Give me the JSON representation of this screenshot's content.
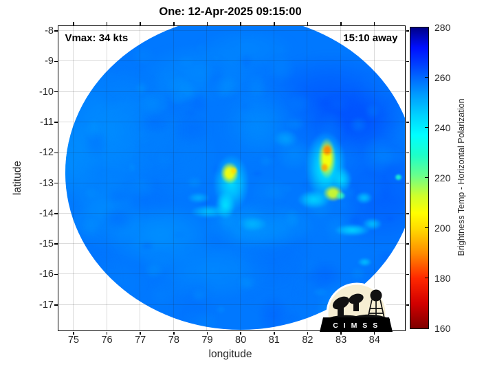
{
  "title": "One: 12-Apr-2025 09:15:00",
  "annotations": {
    "vmax": "Vmax: 34 kts",
    "eta": "15:10 away"
  },
  "logo": {
    "text": "C I M S S"
  },
  "chart_data": {
    "type": "heatmap",
    "title": "One: 12-Apr-2025 09:15:00",
    "xlabel": "longitude",
    "ylabel": "latitude",
    "xlim": [
      74.55,
      84.91
    ],
    "ylim": [
      -17.84,
      -7.84
    ],
    "x_ticks": [
      75,
      76,
      77,
      78,
      79,
      80,
      81,
      82,
      83,
      84
    ],
    "y_ticks": [
      -8,
      -9,
      -10,
      -11,
      -12,
      -13,
      -14,
      -15,
      -16,
      -17
    ],
    "grid": true,
    "annotations": [
      "Vmax: 34 kts",
      "15:10 away"
    ],
    "colorbar": {
      "label": "Brightness Temp - Horizontal Polarization",
      "min": 160,
      "max": 280,
      "ticks": [
        280,
        260,
        240,
        220,
        200,
        180,
        160
      ],
      "stops": [
        [
          160,
          "#7f0000"
        ],
        [
          170,
          "#d20000"
        ],
        [
          180,
          "#ff2800"
        ],
        [
          190,
          "#ff8c00"
        ],
        [
          200,
          "#ffdc00"
        ],
        [
          206,
          "#ffff00"
        ],
        [
          213,
          "#cdff2d"
        ],
        [
          221,
          "#69ff8c"
        ],
        [
          229,
          "#1effc8"
        ],
        [
          237,
          "#00ffff"
        ],
        [
          245,
          "#00d2ff"
        ],
        [
          253,
          "#009dff"
        ],
        [
          259,
          "#0070ff"
        ],
        [
          265,
          "#0041ff"
        ],
        [
          272,
          "#000fff"
        ],
        [
          280,
          "#000087"
        ]
      ]
    },
    "swath": {
      "center_lon": 80.0,
      "center_lat": -12.67,
      "radius_lon": 5.24,
      "radius_lat": 5.15
    },
    "background_temp_k": 258,
    "patches": [
      {
        "lon": 82.7,
        "lat": -10.4,
        "rx": 2.3,
        "ry": 1.7,
        "t": 265,
        "a": 0.55
      },
      {
        "lon": 84.3,
        "lat": -13.3,
        "rx": 1.7,
        "ry": 1.9,
        "t": 264,
        "a": 0.5
      },
      {
        "lon": 83.6,
        "lat": -11.0,
        "rx": 1.3,
        "ry": 1.2,
        "t": 266,
        "a": 0.45
      },
      {
        "lon": 76.2,
        "lat": -11.3,
        "rx": 2.1,
        "ry": 2.1,
        "t": 252,
        "a": 0.5
      },
      {
        "lon": 77.6,
        "lat": -14.7,
        "rx": 1.7,
        "ry": 1.1,
        "t": 251,
        "a": 0.45
      },
      {
        "lon": 78.8,
        "lat": -9.4,
        "rx": 1.9,
        "ry": 1.0,
        "t": 253,
        "a": 0.4
      },
      {
        "lon": 80.6,
        "lat": -14.4,
        "rx": 1.7,
        "ry": 0.8,
        "t": 249,
        "a": 0.5
      },
      {
        "lon": 75.9,
        "lat": -13.9,
        "rx": 1.3,
        "ry": 1.3,
        "t": 252,
        "a": 0.4
      },
      {
        "lon": 81.0,
        "lat": -10.8,
        "rx": 1.5,
        "ry": 1.2,
        "t": 255,
        "a": 0.4
      },
      {
        "lon": 79.2,
        "lat": -15.9,
        "rx": 1.9,
        "ry": 1.0,
        "t": 253,
        "a": 0.4
      },
      {
        "lon": 80.2,
        "lat": -8.6,
        "rx": 1.5,
        "ry": 0.7,
        "t": 254,
        "a": 0.4
      },
      {
        "lon": 74.9,
        "lat": -12.4,
        "rx": 0.9,
        "ry": 1.6,
        "t": 253,
        "a": 0.45
      }
    ],
    "features": [
      {
        "lon": 79.73,
        "lat": -13.0,
        "rx": 0.55,
        "ry": 0.95,
        "t": 240,
        "a": 0.85
      },
      {
        "lon": 79.68,
        "lat": -12.68,
        "rx": 0.3,
        "ry": 0.4,
        "t": 207,
        "a": 0.95,
        "core": true
      },
      {
        "lon": 79.8,
        "lat": -12.6,
        "rx": 0.13,
        "ry": 0.14,
        "t": 200,
        "a": 0.9,
        "core": true
      },
      {
        "lon": 79.55,
        "lat": -13.75,
        "rx": 0.3,
        "ry": 0.45,
        "t": 238,
        "a": 0.8
      },
      {
        "lon": 79.05,
        "lat": -13.95,
        "rx": 0.55,
        "ry": 0.22,
        "t": 243,
        "a": 0.7
      },
      {
        "lon": 78.75,
        "lat": -13.5,
        "rx": 0.35,
        "ry": 0.18,
        "t": 245,
        "a": 0.6
      },
      {
        "lon": 82.55,
        "lat": -12.45,
        "rx": 0.62,
        "ry": 1.15,
        "t": 237,
        "a": 0.9
      },
      {
        "lon": 82.58,
        "lat": -12.2,
        "rx": 0.3,
        "ry": 0.75,
        "t": 206,
        "a": 0.95,
        "core": true
      },
      {
        "lon": 82.6,
        "lat": -11.93,
        "rx": 0.18,
        "ry": 0.23,
        "t": 189,
        "a": 0.9,
        "core": true
      },
      {
        "lon": 82.52,
        "lat": -12.5,
        "rx": 0.14,
        "ry": 0.18,
        "t": 193,
        "a": 0.85,
        "core": true
      },
      {
        "lon": 82.78,
        "lat": -13.35,
        "rx": 0.34,
        "ry": 0.3,
        "t": 211,
        "a": 0.9,
        "core": true
      },
      {
        "lon": 82.2,
        "lat": -13.55,
        "rx": 0.5,
        "ry": 0.3,
        "t": 240,
        "a": 0.75
      },
      {
        "lon": 83.05,
        "lat": -12.9,
        "rx": 0.28,
        "ry": 0.42,
        "t": 238,
        "a": 0.7
      },
      {
        "lon": 83.0,
        "lat": -13.42,
        "rx": 0.17,
        "ry": 0.16,
        "t": 227,
        "a": 0.8,
        "core": true
      },
      {
        "lon": 83.35,
        "lat": -14.55,
        "rx": 0.55,
        "ry": 0.2,
        "t": 239,
        "a": 0.75
      },
      {
        "lon": 83.95,
        "lat": -14.35,
        "rx": 0.3,
        "ry": 0.2,
        "t": 242,
        "a": 0.7
      },
      {
        "lon": 84.72,
        "lat": -12.82,
        "rx": 0.13,
        "ry": 0.13,
        "t": 230,
        "a": 0.85,
        "core": true
      },
      {
        "lon": 83.7,
        "lat": -13.5,
        "rx": 0.26,
        "ry": 0.2,
        "t": 241,
        "a": 0.7
      },
      {
        "lon": 83.72,
        "lat": -15.6,
        "rx": 0.22,
        "ry": 0.15,
        "t": 242,
        "a": 0.7
      },
      {
        "lon": 81.35,
        "lat": -11.55,
        "rx": 0.38,
        "ry": 0.3,
        "t": 249,
        "a": 0.6
      },
      {
        "lon": 80.35,
        "lat": -14.35,
        "rx": 0.45,
        "ry": 0.25,
        "t": 246,
        "a": 0.6
      }
    ],
    "speckle": {
      "count": 130,
      "big_count": 22,
      "seed": 11,
      "temp_range": [
        250,
        264
      ],
      "alpha": 0.28
    }
  }
}
